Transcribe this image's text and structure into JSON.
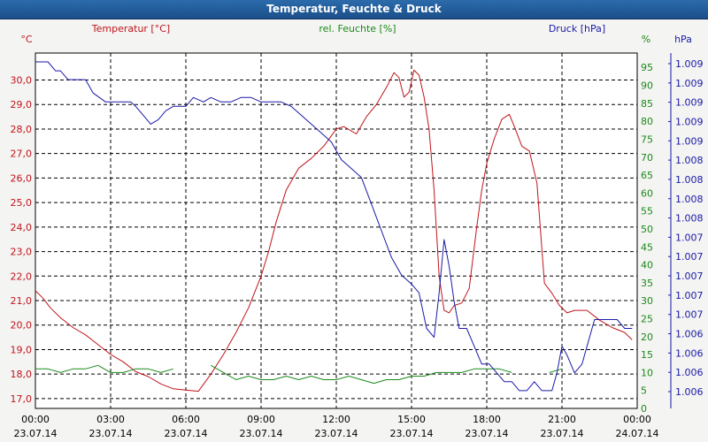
{
  "window": {
    "title": "Temperatur, Feuchte & Druck"
  },
  "chart_data": {
    "type": "line",
    "title": "Temperatur, Feuchte & Druck",
    "colors": {
      "temperature": "#c0141c",
      "humidity": "#1a8a1a",
      "pressure": "#1a1aa8",
      "grid": "#000000"
    },
    "x_ticks": [
      {
        "time": "00:00",
        "date": "23.07.14"
      },
      {
        "time": "03:00",
        "date": "23.07.14"
      },
      {
        "time": "06:00",
        "date": "23.07.14"
      },
      {
        "time": "09:00",
        "date": "23.07.14"
      },
      {
        "time": "12:00",
        "date": "23.07.14"
      },
      {
        "time": "15:00",
        "date": "23.07.14"
      },
      {
        "time": "18:00",
        "date": "23.07.14"
      },
      {
        "time": "21:00",
        "date": "23.07.14"
      },
      {
        "time": "00:00",
        "date": "24.07.14"
      }
    ],
    "x_range_hours": [
      0,
      24
    ],
    "axes": {
      "temperature": {
        "label": "Temperatur [°C]",
        "unit": "°C",
        "range": [
          16.6,
          31.1
        ],
        "ticks": [
          "17,0",
          "18,0",
          "19,0",
          "20,0",
          "21,0",
          "22,0",
          "23,0",
          "24,0",
          "25,0",
          "26,0",
          "27,0",
          "28,0",
          "29,0",
          "30,0"
        ]
      },
      "humidity": {
        "label": "rel. Feuchte [%]",
        "unit": "%",
        "range": [
          0,
          99
        ],
        "ticks": [
          "0",
          "5",
          "10",
          "15",
          "20",
          "25",
          "30",
          "35",
          "40",
          "45",
          "50",
          "55",
          "60",
          "65",
          "70",
          "75",
          "80",
          "85",
          "90",
          "95"
        ]
      },
      "pressure": {
        "label": "Druck [hPa]",
        "unit": "hPa",
        "range": [
          1005.3,
          1009.3
        ],
        "ticks": [
          "1.006",
          "1.006",
          "1.006",
          "1.006",
          "1.007",
          "1.007",
          "1.007",
          "1.007",
          "1.007",
          "1.008",
          "1.008",
          "1.008",
          "1.008",
          "1.009",
          "1.009",
          "1.009",
          "1.009",
          "1.009"
        ]
      }
    },
    "series": [
      {
        "name": "Temperatur",
        "axis": "temperature",
        "x": [
          0,
          0.3,
          0.6,
          1,
          1.5,
          2,
          2.5,
          3,
          3.5,
          4,
          4.5,
          5,
          5.5,
          6,
          6.5,
          7,
          7.5,
          8,
          8.5,
          9,
          9.3,
          9.6,
          10,
          10.5,
          11,
          11.5,
          12,
          12.3,
          12.8,
          13.2,
          13.6,
          14,
          14.3,
          14.5,
          14.7,
          14.9,
          15.1,
          15.3,
          15.5,
          15.7,
          15.9,
          16.1,
          16.3,
          16.5,
          16.7,
          17,
          17.3,
          17.6,
          17.8,
          18,
          18.3,
          18.6,
          18.9,
          19.1,
          19.4,
          19.7,
          20,
          20.3,
          20.6,
          20.9,
          21.2,
          21.5,
          22,
          22.5,
          23,
          23.5,
          23.8
        ],
        "values": [
          21.4,
          21.1,
          20.7,
          20.3,
          19.9,
          19.6,
          19.2,
          18.8,
          18.5,
          18.1,
          17.9,
          17.6,
          17.4,
          17.35,
          17.3,
          18.0,
          18.8,
          19.7,
          20.7,
          22.0,
          23.0,
          24.2,
          25.5,
          26.4,
          26.8,
          27.3,
          28.0,
          28.1,
          27.8,
          28.5,
          29.0,
          29.7,
          30.3,
          30.1,
          29.3,
          29.5,
          30.4,
          30.2,
          29.3,
          28.0,
          25.5,
          22.0,
          20.6,
          20.5,
          20.8,
          20.9,
          21.5,
          24.0,
          25.5,
          26.6,
          27.6,
          28.4,
          28.6,
          28.1,
          27.3,
          27.1,
          25.8,
          21.7,
          21.3,
          20.8,
          20.5,
          20.6,
          20.6,
          20.2,
          19.9,
          19.7,
          19.4
        ]
      },
      {
        "name": "rel. Feuchte",
        "axis": "humidity",
        "x": [
          0,
          0.5,
          1,
          1.5,
          2,
          2.5,
          3,
          3.5,
          4,
          4.5,
          5,
          5.5,
          6,
          6.5,
          7,
          7.5,
          8,
          8.5,
          9,
          9.5,
          10,
          10.5,
          11,
          11.5,
          12,
          12.5,
          13,
          13.5,
          14,
          14.5,
          15,
          15.5,
          16,
          16.5,
          17,
          17.5,
          18,
          18.5,
          19,
          19.5,
          20,
          20.5,
          21,
          21.5,
          22,
          22.5
        ],
        "values": [
          11,
          11,
          10,
          11,
          11,
          12,
          10,
          10,
          11,
          11,
          10,
          11,
          null,
          null,
          12,
          10,
          8,
          9,
          8,
          8,
          9,
          8,
          9,
          8,
          8,
          9,
          8,
          7,
          8,
          8,
          9,
          9,
          10,
          10,
          10,
          11,
          11,
          11,
          10,
          null,
          null,
          10,
          11,
          null,
          null,
          10
        ]
      },
      {
        "name": "Druck",
        "axis": "pressure",
        "x": [
          0,
          0.5,
          0.8,
          1,
          1.3,
          1.8,
          2,
          2.3,
          2.8,
          3.2,
          3.8,
          4,
          4.3,
          4.6,
          4.9,
          5.2,
          5.5,
          6,
          6.3,
          6.7,
          7,
          7.4,
          7.8,
          8.2,
          8.6,
          9,
          9.4,
          9.8,
          10.2,
          10.6,
          11,
          11.4,
          11.8,
          12.2,
          12.6,
          13,
          13.4,
          13.8,
          14.2,
          14.6,
          15,
          15.3,
          15.6,
          15.9,
          16.1,
          16.3,
          16.5,
          16.7,
          16.9,
          17.2,
          17.5,
          17.8,
          18.1,
          18.4,
          18.7,
          19,
          19.3,
          19.6,
          19.9,
          20.2,
          20.4,
          20.6,
          20.8,
          21,
          21.2,
          21.5,
          21.8,
          22,
          22.3,
          22.6,
          22.9,
          23.2,
          23.5,
          23.8
        ],
        "values": [
          1009.2,
          1009.2,
          1009.1,
          1009.1,
          1009.0,
          1009.0,
          1009.0,
          1008.85,
          1008.75,
          1008.75,
          1008.75,
          1008.7,
          1008.6,
          1008.5,
          1008.55,
          1008.65,
          1008.7,
          1008.7,
          1008.8,
          1008.75,
          1008.8,
          1008.75,
          1008.75,
          1008.8,
          1008.8,
          1008.75,
          1008.75,
          1008.75,
          1008.7,
          1008.6,
          1008.5,
          1008.4,
          1008.3,
          1008.1,
          1008.0,
          1007.9,
          1007.6,
          1007.3,
          1007.0,
          1006.8,
          1006.7,
          1006.6,
          1006.2,
          1006.1,
          1006.6,
          1007.2,
          1006.9,
          1006.5,
          1006.2,
          1006.2,
          1006.0,
          1005.8,
          1005.8,
          1005.7,
          1005.6,
          1005.6,
          1005.5,
          1005.5,
          1005.6,
          1005.5,
          1005.5,
          1005.5,
          1005.7,
          1006.0,
          1005.9,
          1005.7,
          1005.8,
          1006.0,
          1006.3,
          1006.3,
          1006.3,
          1006.3,
          1006.2,
          1006.2
        ]
      }
    ]
  }
}
